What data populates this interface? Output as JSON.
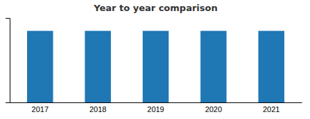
{
  "chart_data": {
    "type": "bar",
    "title": "Year to year comparison",
    "categories": [
      "2017",
      "2018",
      "2019",
      "2020",
      "2021"
    ],
    "values": [
      1.0,
      1.0,
      1.0,
      1.0,
      1.0
    ],
    "ylim": [
      0,
      1.18
    ],
    "yticks": [],
    "grid": false,
    "tick_labels": "x"
  }
}
